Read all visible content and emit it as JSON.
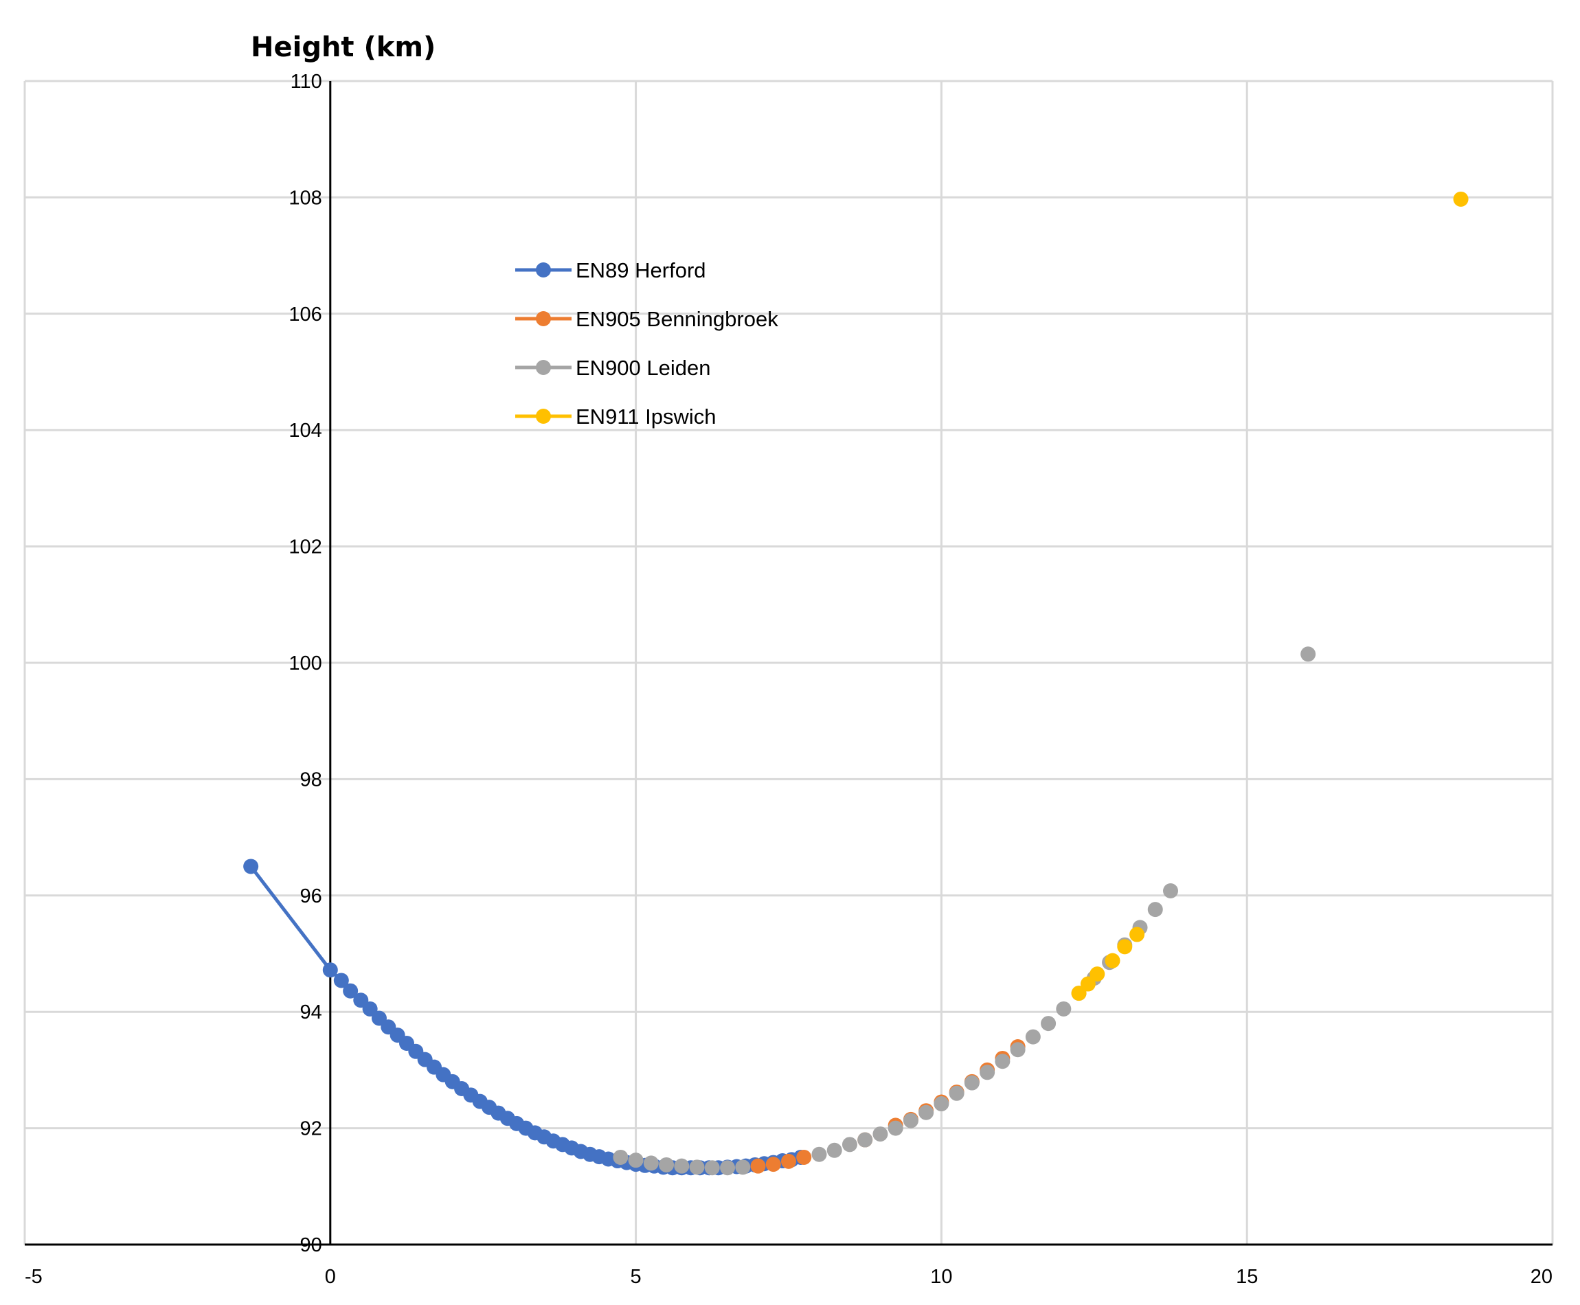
{
  "chart_data": {
    "type": "scatter",
    "title": "",
    "xlabel": "",
    "ylabel": "Height (km)",
    "xlim": [
      -5,
      20
    ],
    "ylim": [
      90,
      110
    ],
    "x_ticks": [
      "-5",
      "0",
      "5",
      "10",
      "15",
      "20"
    ],
    "y_ticks": [
      "90",
      "92",
      "94",
      "96",
      "98",
      "100",
      "102",
      "104",
      "106",
      "108",
      "110"
    ],
    "grid": true,
    "legend_position": "upper-left-center",
    "series": [
      {
        "name": "EN89 Herford",
        "color": "#4472C4",
        "line": true,
        "x": [
          -1.3,
          0,
          0.18,
          0.33,
          0.5,
          0.65,
          0.8,
          0.95,
          1.1,
          1.25,
          1.4,
          1.55,
          1.7,
          1.85,
          2.0,
          2.15,
          2.3,
          2.45,
          2.6,
          2.75,
          2.9,
          3.05,
          3.2,
          3.35,
          3.5,
          3.65,
          3.8,
          3.95,
          4.1,
          4.25,
          4.4,
          4.55,
          4.7,
          4.85,
          5.0,
          5.15,
          5.3,
          5.45,
          5.6,
          5.75,
          5.9,
          6.05,
          6.2,
          6.35,
          6.5,
          6.65,
          6.8,
          6.95,
          7.1,
          7.25,
          7.4,
          7.55,
          7.7
        ],
        "y": [
          96.5,
          94.72,
          94.54,
          94.36,
          94.2,
          94.05,
          93.89,
          93.74,
          93.6,
          93.46,
          93.32,
          93.18,
          93.05,
          92.92,
          92.8,
          92.68,
          92.57,
          92.46,
          92.36,
          92.26,
          92.17,
          92.08,
          92.0,
          91.92,
          91.85,
          91.78,
          91.72,
          91.66,
          91.6,
          91.55,
          91.51,
          91.47,
          91.44,
          91.41,
          91.38,
          91.36,
          91.35,
          91.33,
          91.32,
          91.32,
          91.32,
          91.32,
          91.32,
          91.32,
          91.33,
          91.34,
          91.35,
          91.37,
          91.39,
          91.41,
          91.44,
          91.46,
          91.5
        ]
      },
      {
        "name": "EN905 Benningbroek",
        "color": "#ED7D31",
        "line": false,
        "x": [
          7.0,
          7.25,
          7.5,
          7.75,
          8.75,
          9.25,
          9.5,
          9.75,
          10.0,
          10.25,
          10.5,
          10.75,
          11.0,
          11.25
        ],
        "y": [
          91.35,
          91.38,
          91.43,
          91.5,
          91.8,
          92.05,
          92.15,
          92.3,
          92.45,
          92.62,
          92.8,
          93.0,
          93.2,
          93.4
        ]
      },
      {
        "name": "EN900 Leiden",
        "color": "#A5A5A5",
        "line": false,
        "x": [
          4.75,
          5.0,
          5.25,
          5.5,
          5.75,
          6.0,
          6.25,
          6.5,
          6.75,
          8.0,
          8.25,
          8.5,
          8.75,
          9.0,
          9.25,
          9.5,
          9.75,
          10.0,
          10.25,
          10.5,
          10.75,
          11.0,
          11.25,
          11.5,
          11.75,
          12.0,
          12.25,
          12.5,
          12.75,
          13.0,
          13.25,
          13.5,
          13.75,
          16.0
        ],
        "y": [
          91.5,
          91.45,
          91.4,
          91.37,
          91.35,
          91.33,
          91.32,
          91.32,
          91.33,
          91.55,
          91.62,
          91.72,
          91.8,
          91.9,
          92.0,
          92.13,
          92.27,
          92.42,
          92.6,
          92.78,
          92.96,
          93.15,
          93.35,
          93.57,
          93.8,
          94.05,
          94.32,
          94.58,
          94.85,
          95.15,
          95.45,
          95.76,
          96.08,
          100.15
        ]
      },
      {
        "name": "EN911 Ipswich",
        "color": "#FFC000",
        "line": false,
        "x": [
          12.25,
          12.4,
          12.55,
          12.8,
          13.0,
          13.2,
          18.5
        ],
        "y": [
          94.32,
          94.48,
          94.65,
          94.88,
          95.12,
          95.33,
          107.97
        ]
      }
    ]
  }
}
